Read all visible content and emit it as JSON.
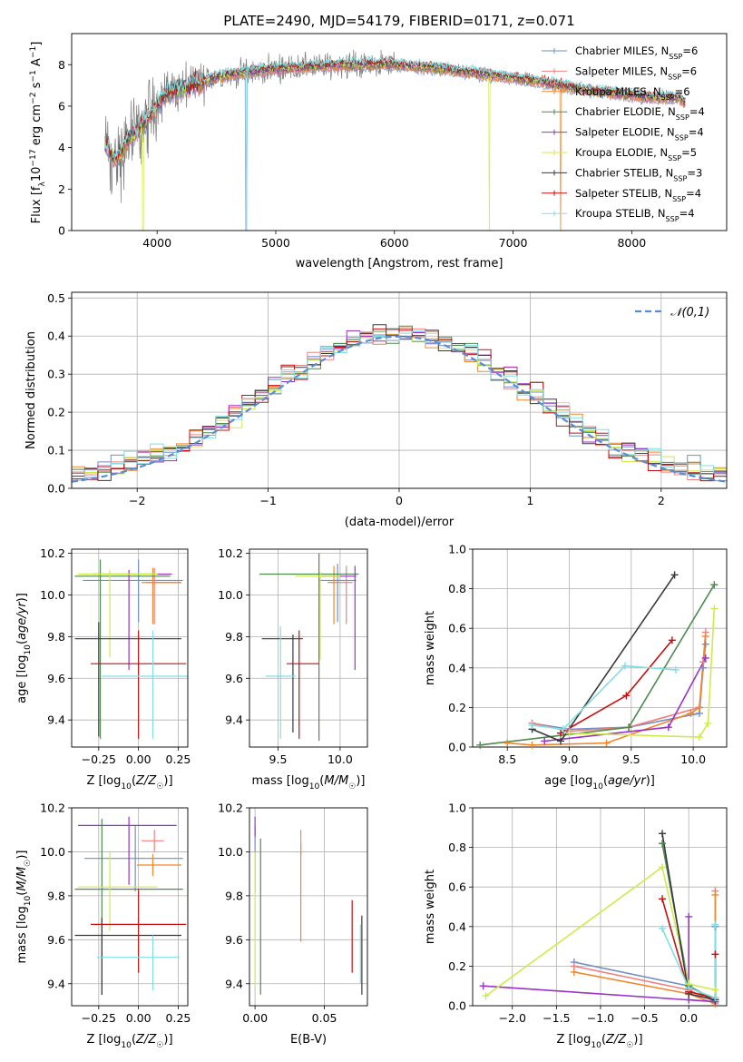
{
  "figure_title": "PLATE=2490, MJD=54179, FIBERID=0171, z=0.071",
  "series_colors": [
    "#6f8fc6",
    "#f08080",
    "#f0872a",
    "#4f8a4f",
    "#9a32c8",
    "#d0ea4a",
    "#3a3a3a",
    "#c41010",
    "#7fdfe4"
  ],
  "chart_data": [
    {
      "id": "spectrum",
      "type": "line",
      "xlabel": "wavelength [Angstrom, rest frame]",
      "ylabel": "Flux [f_λ10^-17 erg cm^-2 s^-1 A^-1]",
      "xlim": [
        3280,
        8800
      ],
      "ylim": [
        0,
        9.5
      ],
      "xticks": [
        4000,
        5000,
        6000,
        7000,
        8000
      ],
      "yticks": [
        0,
        2,
        4,
        6,
        8
      ],
      "grid": false,
      "legend_placement": "top-right",
      "continuum": {
        "x": [
          3560,
          3650,
          3700,
          3750,
          3800,
          3900,
          4000,
          4100,
          4200,
          4300,
          4400,
          4500,
          4700,
          5000,
          5300,
          5600,
          6000,
          6400,
          6800,
          7200,
          7400,
          7600,
          7900,
          8200,
          8400,
          8450
        ],
        "y": [
          4.2,
          3.4,
          3.7,
          4.4,
          4.6,
          5.2,
          6.1,
          6.7,
          6.8,
          7.0,
          7.2,
          7.4,
          7.6,
          7.8,
          7.9,
          8.0,
          8.0,
          7.8,
          7.5,
          7.2,
          7.0,
          6.8,
          6.6,
          6.4,
          6.4,
          6.1
        ]
      },
      "series": [
        {
          "name": "Chabrier MILES, N_SSP=6"
        },
        {
          "name": "Salpeter MILES, N_SSP=6"
        },
        {
          "name": "Kroupa MILES, N_SSP=6"
        },
        {
          "name": "Chabrier ELODIE, N_SSP=4"
        },
        {
          "name": "Salpeter ELODIE, N_SSP=4"
        },
        {
          "name": "Kroupa ELODIE, N_SSP=5"
        },
        {
          "name": "Chabrier STELIB, N_SSP=3"
        },
        {
          "name": "Salpeter STELIB, N_SSP=4"
        },
        {
          "name": "Kroupa STELIB, N_SSP=4"
        }
      ]
    },
    {
      "id": "residuals",
      "type": "histogram",
      "xlabel": "(data-model)/error",
      "ylabel": "Normed distribution",
      "xlim": [
        -2.5,
        2.5
      ],
      "ylim": [
        0,
        0.515
      ],
      "xticks": [
        -2,
        -1,
        0,
        1,
        2
      ],
      "yticks": [
        0.0,
        0.1,
        0.2,
        0.3,
        0.4,
        0.5
      ],
      "grid": true,
      "legend_placement": "top-right",
      "reference_curve": {
        "name": "𝒩(0,1)",
        "mean": 0,
        "sigma": 1,
        "style": "dashed"
      },
      "bin_width": 0.1
    },
    {
      "id": "age-vs-Z",
      "type": "errorbar",
      "xlabel": "Z [log10(Z/Z☉)]",
      "ylabel": "age  [log10(age/yr)]",
      "xlim": [
        -0.42,
        0.31
      ],
      "ylim": [
        9.27,
        10.22
      ],
      "xticks": [
        -0.25,
        0.0,
        0.25
      ],
      "yticks": [
        9.4,
        9.6,
        9.8,
        10.0,
        10.2
      ],
      "grid": true,
      "points": [
        {
          "x": 0.0,
          "xerr": [
            0.35,
            0.28
          ],
          "y": 10.07,
          "yerr": [
            0.2,
            0.1
          ]
        },
        {
          "x": 0.1,
          "xerr": [
            0.05,
            0.17
          ],
          "y": 10.06,
          "yerr": [
            0.2,
            0.07
          ]
        },
        {
          "x": 0.09,
          "xerr": [
            0.07,
            0.18
          ],
          "y": 10.06,
          "yerr": [
            0.2,
            0.07
          ]
        },
        {
          "x": -0.24,
          "xerr": [
            0.16,
            0.44
          ],
          "y": 10.09,
          "yerr": [
            0.78,
            0.08
          ]
        },
        {
          "x": -0.06,
          "xerr": [
            0.23,
            0.27
          ],
          "y": 10.1,
          "yerr": [
            0.46,
            0.02
          ]
        },
        {
          "x": -0.18,
          "xerr": [
            0.2,
            0.3
          ],
          "y": 10.1,
          "yerr": [
            0.4,
            0.02
          ]
        },
        {
          "x": -0.25,
          "xerr": [
            0.15,
            0.52
          ],
          "y": 9.79,
          "yerr": [
            0.47,
            0.08
          ]
        },
        {
          "x": 0.0,
          "xerr": [
            0.3,
            0.3
          ],
          "y": 9.67,
          "yerr": [
            0.36,
            0.16
          ]
        },
        {
          "x": 0.09,
          "xerr": [
            0.32,
            0.4
          ],
          "y": 9.61,
          "yerr": [
            0.3,
            0.22
          ]
        }
      ]
    },
    {
      "id": "age-vs-mass",
      "type": "errorbar",
      "xlabel": "mass [log10(M/M☉)]",
      "ylabel": "",
      "xlim": [
        9.27,
        10.22
      ],
      "ylim": [
        9.27,
        10.22
      ],
      "xticks": [
        9.5,
        10.0
      ],
      "yticks": [
        9.4,
        9.6,
        9.8,
        10.0,
        10.2
      ],
      "grid": true,
      "points": [
        {
          "x": 9.98,
          "xerr": [
            0.15,
            0.15
          ],
          "y": 10.07,
          "yerr": [
            0.2,
            0.08
          ]
        },
        {
          "x": 10.05,
          "xerr": [
            0.05,
            0.05
          ],
          "y": 10.06,
          "yerr": [
            0.2,
            0.08
          ]
        },
        {
          "x": 9.95,
          "xerr": [
            0.05,
            0.05
          ],
          "y": 10.06,
          "yerr": [
            0.2,
            0.08
          ]
        },
        {
          "x": 9.83,
          "xerr": [
            0.48,
            0.32
          ],
          "y": 10.1,
          "yerr": [
            0.8,
            0.1
          ]
        },
        {
          "x": 10.12,
          "xerr": [
            0.27,
            0.01
          ],
          "y": 10.09,
          "yerr": [
            0.45,
            0.05
          ]
        },
        {
          "x": 9.84,
          "xerr": [
            0.2,
            0.16
          ],
          "y": 10.09,
          "yerr": [
            0.4,
            0.02
          ]
        },
        {
          "x": 9.62,
          "xerr": [
            0.25,
            0.08
          ],
          "y": 9.79,
          "yerr": [
            0.45,
            0.02
          ]
        },
        {
          "x": 9.67,
          "xerr": [
            0.1,
            0.16
          ],
          "y": 9.67,
          "yerr": [
            0.36,
            0.16
          ]
        },
        {
          "x": 9.52,
          "xerr": [
            0.12,
            0.12
          ],
          "y": 9.61,
          "yerr": [
            0.3,
            0.24
          ]
        }
      ]
    },
    {
      "id": "weight-vs-age",
      "type": "line",
      "xlabel": "age  [log10(age/yr)]",
      "ylabel": "mass weight",
      "xlim": [
        8.22,
        10.27
      ],
      "ylim": [
        0,
        1.0
      ],
      "xticks": [
        8.5,
        9.0,
        9.5,
        10.0
      ],
      "yticks": [
        0.0,
        0.2,
        0.4,
        0.6,
        0.8,
        1.0
      ],
      "grid": true,
      "lines": [
        {
          "x": [
            8.7,
            9.0,
            9.48,
            10.05,
            10.08,
            10.1
          ],
          "y": [
            0.12,
            0.09,
            0.1,
            0.17,
            0.4,
            0.52
          ]
        },
        {
          "x": [
            8.7,
            9.0,
            9.48,
            10.05,
            10.08,
            10.1
          ],
          "y": [
            0.12,
            0.08,
            0.1,
            0.2,
            0.43,
            0.58
          ]
        },
        {
          "x": [
            8.5,
            8.7,
            9.3,
            9.98,
            10.05,
            10.1
          ],
          "y": [
            0.02,
            0.01,
            0.02,
            0.17,
            0.2,
            0.56
          ]
        },
        {
          "x": [
            8.28,
            9.48,
            10.17
          ],
          "y": [
            0.01,
            0.1,
            0.82
          ]
        },
        {
          "x": [
            8.8,
            9.8,
            10.1
          ],
          "y": [
            0.03,
            0.1,
            0.45
          ]
        },
        {
          "x": [
            9.0,
            10.05,
            10.12,
            10.17
          ],
          "y": [
            0.07,
            0.05,
            0.12,
            0.7
          ]
        },
        {
          "x": [
            8.7,
            8.93,
            9.85
          ],
          "y": [
            0.09,
            0.03,
            0.87
          ]
        },
        {
          "x": [
            8.93,
            9.46,
            9.83
          ],
          "y": [
            0.07,
            0.26,
            0.54
          ]
        },
        {
          "x": [
            8.7,
            8.95,
            9.45,
            9.86
          ],
          "y": [
            0.11,
            0.09,
            0.41,
            0.39
          ]
        }
      ]
    },
    {
      "id": "mass-vs-Z",
      "type": "errorbar",
      "xlabel": "Z [log10(Z/Z☉)]",
      "ylabel": "mass [log10(M/M☉)]",
      "xlim": [
        -0.42,
        0.31
      ],
      "ylim": [
        9.3,
        10.2
      ],
      "xticks": [
        -0.25,
        0.0,
        0.25
      ],
      "yticks": [
        9.4,
        9.6,
        9.8,
        10.0,
        10.2
      ],
      "grid": true,
      "points": [
        {
          "x": -0.02,
          "xerr": [
            0.32,
            0.3
          ],
          "y": 9.97,
          "yerr": [
            0.15,
            0.15
          ]
        },
        {
          "x": 0.1,
          "xerr": [
            0.08,
            0.06
          ],
          "y": 10.05,
          "yerr": [
            0.05,
            0.05
          ]
        },
        {
          "x": 0.09,
          "xerr": [
            0.1,
            0.18
          ],
          "y": 9.94,
          "yerr": [
            0.05,
            0.05
          ]
        },
        {
          "x": -0.23,
          "xerr": [
            0.17,
            0.51
          ],
          "y": 9.83,
          "yerr": [
            0.48,
            0.32
          ]
        },
        {
          "x": -0.06,
          "xerr": [
            0.32,
            0.3
          ],
          "y": 10.12,
          "yerr": [
            0.27,
            0.04
          ]
        },
        {
          "x": -0.18,
          "xerr": [
            0.2,
            0.3
          ],
          "y": 9.84,
          "yerr": [
            0.2,
            0.16
          ]
        },
        {
          "x": -0.23,
          "xerr": [
            0.17,
            0.5
          ],
          "y": 9.62,
          "yerr": [
            0.27,
            0.08
          ]
        },
        {
          "x": 0.0,
          "xerr": [
            0.3,
            0.3
          ],
          "y": 9.67,
          "yerr": [
            0.22,
            0.16
          ]
        },
        {
          "x": 0.09,
          "xerr": [
            0.35,
            0.17
          ],
          "y": 9.52,
          "yerr": [
            0.15,
            0.1
          ]
        }
      ]
    },
    {
      "id": "mass-vs-EBV",
      "type": "errorbar",
      "xlabel": "E(B-V)",
      "ylabel": "",
      "xlim": [
        -0.004,
        0.081
      ],
      "ylim": [
        9.3,
        10.2
      ],
      "xticks": [
        0.0,
        0.05
      ],
      "yticks": [
        9.4,
        9.6,
        9.8,
        10.0,
        10.2
      ],
      "grid": true,
      "points": [
        {
          "x": 0.0,
          "y": 9.97,
          "yerr": [
            0.15,
            0.15
          ]
        },
        {
          "x": 0.033,
          "y": 10.05,
          "yerr": [
            0.06,
            0.05
          ]
        },
        {
          "x": 0.033,
          "y": 9.94,
          "yerr": [
            0.35,
            0.1
          ]
        },
        {
          "x": 0.004,
          "y": 9.7,
          "yerr": [
            0.35,
            0.36
          ]
        },
        {
          "x": 0.0,
          "y": 10.12,
          "yerr": [
            0.05,
            0.04
          ]
        },
        {
          "x": 0.0,
          "y": 9.84,
          "yerr": [
            0.45,
            0.16
          ]
        },
        {
          "x": 0.077,
          "y": 9.53,
          "yerr": [
            0.18,
            0.18
          ]
        },
        {
          "x": 0.07,
          "y": 9.62,
          "yerr": [
            0.17,
            0.16
          ]
        },
        {
          "x": 0.076,
          "y": 9.55,
          "yerr": [
            0.15,
            0.12
          ]
        }
      ]
    },
    {
      "id": "weight-vs-Z",
      "type": "line",
      "xlabel": "Z [log10(Z/Z☉)]",
      "ylabel": "mass weight",
      "xlim": [
        -2.45,
        0.43
      ],
      "ylim": [
        0,
        1.0
      ],
      "xticks": [
        -2.0,
        -1.5,
        -1.0,
        -0.5,
        0.0
      ],
      "yticks": [
        0.0,
        0.2,
        0.4,
        0.6,
        0.8,
        1.0
      ],
      "grid": true,
      "lines": [
        {
          "x": [
            -1.3,
            0.0,
            0.3,
            0.3
          ],
          "y": [
            0.22,
            0.1,
            0.03,
            0.4
          ]
        },
        {
          "x": [
            -1.3,
            0.0,
            0.3,
            0.3
          ],
          "y": [
            0.2,
            0.08,
            0.02,
            0.58
          ]
        },
        {
          "x": [
            -1.3,
            0.0,
            0.3,
            0.3
          ],
          "y": [
            0.17,
            0.06,
            0.01,
            0.56
          ]
        },
        {
          "x": [
            -0.3,
            0.0,
            0.3
          ],
          "y": [
            0.82,
            0.1,
            0.02
          ]
        },
        {
          "x": [
            -2.33,
            0.3,
            0.0,
            0.0
          ],
          "y": [
            0.1,
            0.02,
            0.03,
            0.45
          ]
        },
        {
          "x": [
            -2.3,
            -0.3,
            0.0,
            0.3
          ],
          "y": [
            0.05,
            0.7,
            0.11,
            0.08
          ]
        },
        {
          "x": [
            -0.3,
            0.0,
            0.3
          ],
          "y": [
            0.87,
            0.06,
            0.03
          ]
        },
        {
          "x": [
            -0.3,
            0.0,
            0.3,
            0.3
          ],
          "y": [
            0.54,
            0.07,
            0.04,
            0.26
          ]
        },
        {
          "x": [
            -0.3,
            0.0,
            0.3,
            0.3
          ],
          "y": [
            0.39,
            0.09,
            0.04,
            0.41
          ]
        }
      ]
    }
  ]
}
